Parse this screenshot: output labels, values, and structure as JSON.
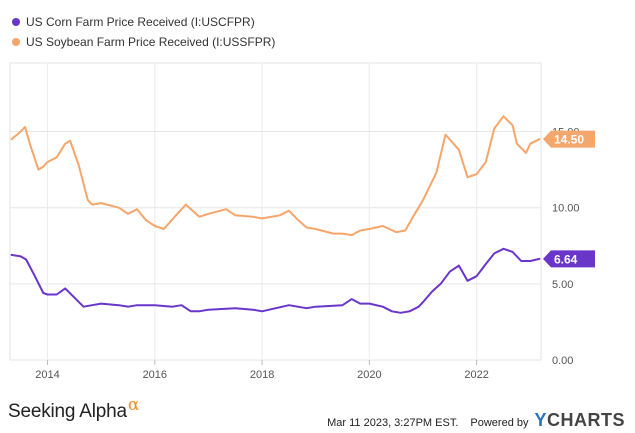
{
  "chart_data": {
    "type": "line",
    "x_axis": {
      "ticks": [
        "2014",
        "2016",
        "2018",
        "2020",
        "2022"
      ],
      "range": [
        2013.3,
        2023.2
      ]
    },
    "y_axis": {
      "ticks": [
        "0.00",
        "5.00",
        "10.00",
        "15.00"
      ],
      "range": [
        0,
        19.5
      ],
      "position": "right"
    },
    "grid": true,
    "legend": "top-left",
    "series": [
      {
        "name": "US Corn Farm Price Received (I:USCFPR)",
        "color": "#6a35c9",
        "last_label": "6.64",
        "x": [
          2013.33,
          2013.5,
          2013.6,
          2013.75,
          2013.92,
          2014.0,
          2014.17,
          2014.33,
          2014.5,
          2014.67,
          2014.83,
          2015.0,
          2015.33,
          2015.5,
          2015.67,
          2016.0,
          2016.33,
          2016.5,
          2016.67,
          2016.83,
          2017.0,
          2017.5,
          2017.83,
          2018.0,
          2018.5,
          2018.83,
          2019.0,
          2019.5,
          2019.67,
          2019.83,
          2020.0,
          2020.25,
          2020.42,
          2020.58,
          2020.75,
          2020.92,
          2021.0,
          2021.17,
          2021.33,
          2021.5,
          2021.67,
          2021.83,
          2022.0,
          2022.17,
          2022.33,
          2022.5,
          2022.67,
          2022.83,
          2023.0,
          2023.17
        ],
        "y": [
          6.9,
          6.8,
          6.6,
          5.6,
          4.4,
          4.3,
          4.3,
          4.7,
          4.1,
          3.5,
          3.6,
          3.7,
          3.6,
          3.5,
          3.6,
          3.6,
          3.5,
          3.6,
          3.2,
          3.2,
          3.3,
          3.4,
          3.3,
          3.2,
          3.6,
          3.4,
          3.5,
          3.6,
          4.0,
          3.7,
          3.7,
          3.5,
          3.2,
          3.1,
          3.2,
          3.5,
          3.8,
          4.5,
          5.0,
          5.8,
          6.2,
          5.2,
          5.5,
          6.3,
          7.0,
          7.3,
          7.1,
          6.5,
          6.5,
          6.64
        ]
      },
      {
        "name": "US Soybean Farm Price Received (I:USSFPR)",
        "color": "#f5a66a",
        "last_label": "14.50",
        "x": [
          2013.33,
          2013.5,
          2013.58,
          2013.67,
          2013.83,
          2013.92,
          2014.0,
          2014.17,
          2014.33,
          2014.42,
          2014.58,
          2014.75,
          2014.83,
          2015.0,
          2015.33,
          2015.5,
          2015.67,
          2015.83,
          2016.0,
          2016.17,
          2016.42,
          2016.58,
          2016.83,
          2017.0,
          2017.33,
          2017.5,
          2017.83,
          2018.0,
          2018.33,
          2018.5,
          2018.67,
          2018.83,
          2019.0,
          2019.33,
          2019.5,
          2019.67,
          2019.83,
          2020.0,
          2020.25,
          2020.5,
          2020.67,
          2020.83,
          2021.0,
          2021.25,
          2021.42,
          2021.67,
          2021.83,
          2022.0,
          2022.17,
          2022.33,
          2022.5,
          2022.67,
          2022.75,
          2022.92,
          2023.0,
          2023.17
        ],
        "y": [
          14.5,
          15.0,
          15.3,
          14.2,
          12.5,
          12.7,
          13.0,
          13.3,
          14.2,
          14.4,
          12.8,
          10.5,
          10.2,
          10.3,
          10.0,
          9.6,
          9.9,
          9.2,
          8.8,
          8.6,
          9.6,
          10.2,
          9.4,
          9.6,
          9.9,
          9.5,
          9.4,
          9.3,
          9.5,
          9.8,
          9.2,
          8.7,
          8.6,
          8.3,
          8.3,
          8.2,
          8.5,
          8.6,
          8.8,
          8.4,
          8.5,
          9.5,
          10.5,
          12.3,
          14.8,
          13.8,
          12.0,
          12.2,
          13.0,
          15.2,
          16.0,
          15.4,
          14.2,
          13.6,
          14.2,
          14.5
        ]
      }
    ]
  },
  "footer": {
    "brand": "Seeking Alpha",
    "brand_symbol": "α",
    "timestamp": "Mar 11 2023, 3:27PM EST.",
    "powered_by": "Powered by",
    "ycharts_y": "Y",
    "ycharts_rest": "CHARTS"
  }
}
